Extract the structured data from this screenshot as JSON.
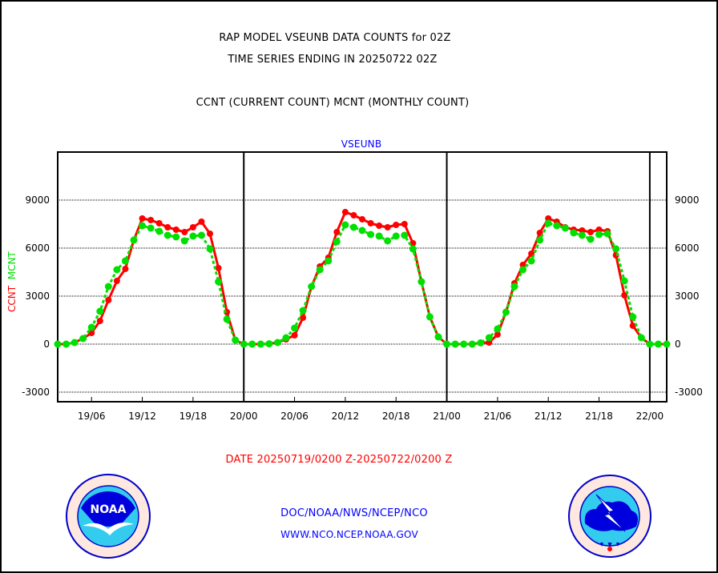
{
  "header": {
    "title_line1": "RAP MODEL VSEUNB DATA COUNTS for 02Z",
    "title_line2": "TIME SERIES ENDING IN 20250722 02Z",
    "subtitle": "CCNT (CURRENT COUNT) MCNT (MONTHLY COUNT)"
  },
  "footer": {
    "date_range": "DATE 20250719/0200 Z-20250722/0200 Z",
    "org": "DOC/NOAA/NWS/NCEP/NCO",
    "url": "WWW.NCO.NCEP.NOAA.GOV",
    "noaa_logo_text": "NOAA",
    "noaa_seal_text": "NATIONAL OCEANIC AND ATMOSPHERIC ADMINISTRATION U.S. DEPARTMENT OF COMMERCE",
    "nws_seal_text": "NATIONAL WEATHER SERVICE"
  },
  "colors": {
    "ccnt": "#ff0000",
    "mcnt": "#00e000",
    "label_blue": "#0000ff",
    "axis": "#000000"
  },
  "chart_data": {
    "type": "line",
    "title": "VSEUNB",
    "xlabel": "DATE 20250719/0200 Z-20250722/0200 Z",
    "ylabel_parts": [
      "CCNT",
      "MCNT"
    ],
    "x_start_hours": 2,
    "x_end_hours": 74,
    "x_unit": "hours since 19/00",
    "ylim": [
      -3600,
      12000
    ],
    "yticks": [
      -3000,
      0,
      3000,
      6000,
      9000
    ],
    "ytick_labels": [
      "-3000",
      "0",
      "3000",
      "6000",
      "9000"
    ],
    "xticks_hours": [
      6,
      12,
      18,
      24,
      30,
      36,
      42,
      48,
      54,
      60,
      66,
      72
    ],
    "xtick_labels": [
      "19/06",
      "19/12",
      "19/18",
      "20/00",
      "20/06",
      "20/12",
      "20/18",
      "21/00",
      "21/06",
      "21/12",
      "21/18",
      "22/00"
    ],
    "day_boundaries_hours": [
      24,
      48,
      72
    ],
    "grid": "horizontal dotted at y ticks",
    "x_hours": [
      2,
      3,
      4,
      5,
      6,
      7,
      8,
      9,
      10,
      11,
      12,
      13,
      14,
      15,
      16,
      17,
      18,
      19,
      20,
      21,
      22,
      23,
      24,
      25,
      26,
      27,
      28,
      29,
      30,
      31,
      32,
      33,
      34,
      35,
      36,
      37,
      38,
      39,
      40,
      41,
      42,
      43,
      44,
      45,
      46,
      47,
      48,
      49,
      50,
      51,
      52,
      53,
      54,
      55,
      56,
      57,
      58,
      59,
      60,
      61,
      62,
      63,
      64,
      65,
      66,
      67,
      68,
      69,
      70,
      71,
      72,
      73,
      74
    ],
    "series": [
      {
        "name": "CCNT",
        "style": "solid",
        "values": [
          0,
          0,
          100,
          350,
          700,
          1450,
          2750,
          3950,
          4700,
          6500,
          7850,
          7750,
          7550,
          7300,
          7150,
          7000,
          7300,
          7650,
          6900,
          4750,
          2000,
          250,
          0,
          0,
          0,
          20,
          100,
          300,
          550,
          1650,
          3600,
          4850,
          5400,
          7000,
          8250,
          8050,
          7800,
          7550,
          7400,
          7300,
          7450,
          7500,
          6300,
          3900,
          1700,
          450,
          0,
          0,
          0,
          0,
          80,
          100,
          600,
          2000,
          3800,
          4950,
          5650,
          6950,
          7850,
          7650,
          7300,
          7150,
          7100,
          7000,
          7150,
          7050,
          5550,
          3050,
          1150,
          400,
          0,
          0,
          0
        ]
      },
      {
        "name": "MCNT",
        "style": "dotted",
        "values": [
          0,
          0,
          100,
          350,
          1050,
          2050,
          3600,
          4650,
          5200,
          6500,
          7400,
          7250,
          7050,
          6800,
          6700,
          6450,
          6750,
          6800,
          5950,
          3900,
          1550,
          250,
          0,
          0,
          0,
          20,
          100,
          400,
          1000,
          2100,
          3600,
          4650,
          5200,
          6400,
          7450,
          7300,
          7100,
          6850,
          6750,
          6450,
          6750,
          6800,
          5950,
          3900,
          1700,
          450,
          0,
          0,
          0,
          0,
          80,
          400,
          950,
          2000,
          3600,
          4650,
          5200,
          6500,
          7550,
          7400,
          7250,
          6950,
          6800,
          6550,
          6850,
          6900,
          5950,
          3950,
          1700,
          400,
          0,
          0,
          0
        ]
      }
    ]
  }
}
